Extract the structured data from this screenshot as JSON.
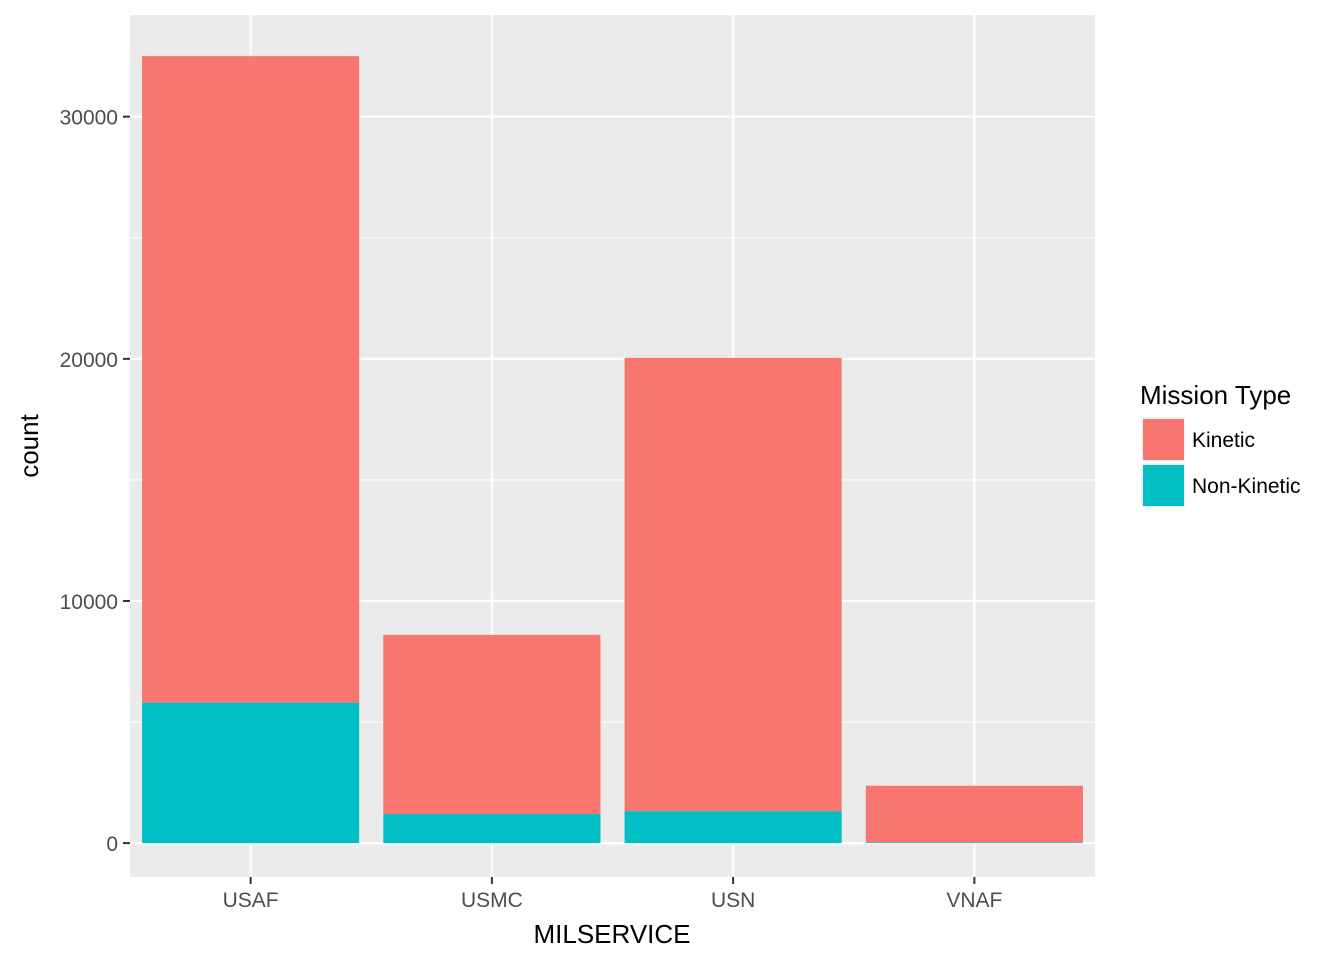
{
  "chart_data": {
    "type": "bar",
    "stacked": true,
    "categories": [
      "USAF",
      "USMC",
      "USN",
      "VNAF"
    ],
    "series": [
      {
        "name": "Non-Kinetic",
        "values": [
          5800,
          1200,
          1320,
          30
        ],
        "color": "#00BFC4"
      },
      {
        "name": "Kinetic",
        "values": [
          26700,
          7400,
          18720,
          2340
        ],
        "color": "#F8766D"
      }
    ],
    "xlabel": "MILSERVICE",
    "ylabel": "count",
    "ylim": [
      -1400,
      34200
    ],
    "yticks": [
      0,
      10000,
      20000,
      30000
    ],
    "ytick_labels": [
      "0",
      "10000",
      "20000",
      "30000"
    ],
    "grid": true,
    "panel_background": "#EBEBEB",
    "legend": {
      "title": "Mission Type",
      "placement": "right",
      "entries": [
        {
          "label": "Kinetic",
          "color": "#F8766D"
        },
        {
          "label": "Non-Kinetic",
          "color": "#00BFC4"
        }
      ]
    }
  }
}
